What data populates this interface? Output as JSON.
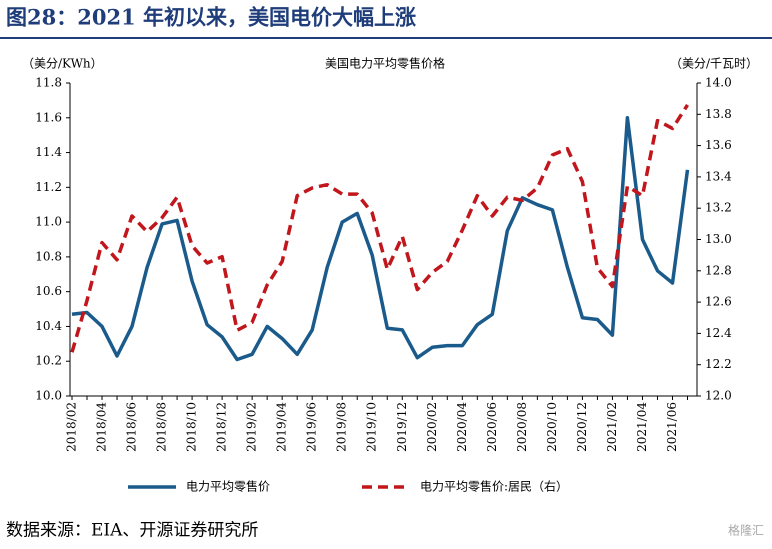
{
  "header": {
    "title": "图28：2021 年初以来，美国电价大幅上涨"
  },
  "chart_data": {
    "type": "line",
    "title": "美国电力平均零售价格",
    "y_label": "（美分/KWh）",
    "y2_label": "（美分/千瓦时）",
    "categories": [
      "2018/02",
      null,
      "2018/04",
      null,
      "2018/06",
      null,
      "2018/08",
      null,
      "2018/10",
      null,
      "2018/12",
      null,
      "2019/02",
      null,
      "2019/04",
      null,
      "2019/06",
      null,
      "2019/08",
      null,
      "2019/10",
      null,
      "2019/12",
      null,
      "2020/02",
      null,
      "2020/04",
      null,
      "2020/06",
      null,
      "2020/08",
      null,
      "2020/10",
      null,
      "2020/12",
      null,
      "2021/02",
      null,
      "2021/04",
      null,
      "2021/06",
      null
    ],
    "series": [
      {
        "name": "电力平均零售价",
        "color": "#1a5b8c",
        "values": [
          10.47,
          10.48,
          10.4,
          10.23,
          10.4,
          10.74,
          10.99,
          11.01,
          10.66,
          10.41,
          10.34,
          10.21,
          10.24,
          10.4,
          10.33,
          10.24,
          10.38,
          10.74,
          11.0,
          11.05,
          10.81,
          10.39,
          10.38,
          10.22,
          10.28,
          10.29,
          10.29,
          10.41,
          10.47,
          10.95,
          11.14,
          11.1,
          11.07,
          10.74,
          10.45,
          10.44,
          10.35,
          11.6,
          10.9,
          10.72,
          10.65,
          11.3
        ]
      },
      {
        "name": "电力平均零售价:居民（右）",
        "color": "#c0161c",
        "axis": "y2",
        "dashed": true,
        "values": [
          12.28,
          12.61,
          12.98,
          12.87,
          13.15,
          13.05,
          13.14,
          13.27,
          12.96,
          12.85,
          12.89,
          12.42,
          12.47,
          12.71,
          12.86,
          13.28,
          13.33,
          13.35,
          13.29,
          13.29,
          13.17,
          12.81,
          13.02,
          12.68,
          12.79,
          12.86,
          13.06,
          13.28,
          13.15,
          13.27,
          13.25,
          13.33,
          13.54,
          13.58,
          13.37,
          12.82,
          12.7,
          13.34,
          13.28,
          13.76,
          13.71,
          13.86
        ]
      }
    ],
    "ylim": [
      10.0,
      11.8
    ],
    "yticks": [
      {
        "value": 10,
        "label": "10.0"
      },
      10.2,
      10.4,
      10.6,
      10.8,
      {
        "value": 11,
        "label": "11.0"
      },
      11.2,
      11.4,
      11.6,
      11.8
    ],
    "y2lim": [
      12.0,
      14.0
    ],
    "y2ticks": [
      {
        "value": 12,
        "label": "12.0"
      },
      12.2,
      12.4,
      12.6,
      12.8,
      {
        "value": 13,
        "label": "13.0"
      },
      13.2,
      13.4,
      13.6,
      13.8,
      {
        "value": 14,
        "label": "14.0"
      }
    ],
    "grid": false,
    "legend": "bottom"
  },
  "footer": {
    "source": "数据来源：EIA、开源证券研究所",
    "watermark": "格隆汇"
  }
}
